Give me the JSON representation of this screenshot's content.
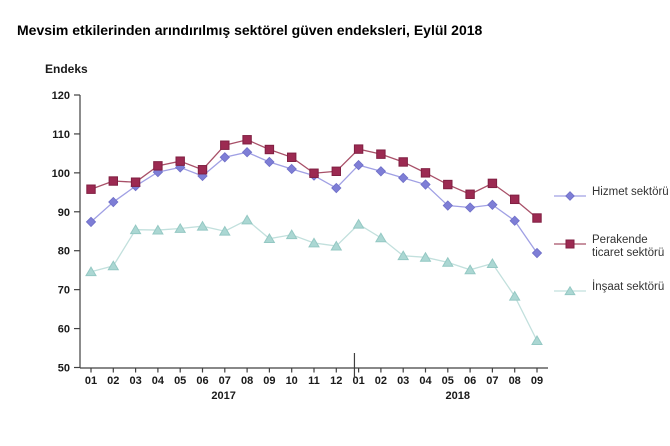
{
  "chart_data": {
    "type": "line",
    "title": "Mevsim etkilerinden arındırılmış sektörel güven endeksleri, Eylül 2018",
    "ylabel": "Endeks",
    "xlabel": "",
    "ylim": [
      50,
      120
    ],
    "ytick_step": 10,
    "grid": false,
    "legend_position": "right",
    "axis_color": "#404040",
    "x_groups": [
      {
        "year": "2017",
        "months": [
          "01",
          "02",
          "03",
          "04",
          "05",
          "06",
          "07",
          "08",
          "09",
          "10",
          "11",
          "12"
        ]
      },
      {
        "year": "2018",
        "months": [
          "01",
          "02",
          "03",
          "04",
          "05",
          "06",
          "07",
          "08",
          "09"
        ]
      }
    ],
    "series": [
      {
        "name": "Hizmet sektörü",
        "marker": "diamond",
        "line_color": "#a0a0e4",
        "fill_color": "#7e7ed6",
        "edge_color": "#6f6fc8",
        "values": [
          87.4,
          92.5,
          96.6,
          100.2,
          101.4,
          99.2,
          104.0,
          105.3,
          102.8,
          101.0,
          99.3,
          96.1,
          102.0,
          100.4,
          98.7,
          97.0,
          91.6,
          91.1,
          91.8,
          87.7,
          79.4
        ]
      },
      {
        "name": "Perakende ticaret sektörü",
        "marker": "square",
        "line_color": "#a85068",
        "fill_color": "#9c2a52",
        "edge_color": "#801f42",
        "values": [
          95.8,
          97.9,
          97.6,
          101.8,
          103.0,
          100.8,
          107.1,
          108.5,
          106.0,
          104.0,
          99.9,
          100.4,
          106.1,
          104.8,
          102.8,
          100.0,
          97.0,
          94.5,
          97.3,
          93.2,
          88.4
        ]
      },
      {
        "name": "İnşaat sektörü",
        "marker": "triangle",
        "line_color": "#c2e0dd",
        "fill_color": "#abd7d3",
        "edge_color": "#94c8c3",
        "values": [
          74.6,
          76.1,
          85.4,
          85.3,
          85.7,
          86.3,
          85.0,
          87.9,
          83.1,
          84.1,
          82.0,
          81.2,
          86.8,
          83.3,
          78.7,
          78.3,
          77.0,
          75.1,
          76.7,
          68.3,
          56.9
        ]
      }
    ]
  }
}
